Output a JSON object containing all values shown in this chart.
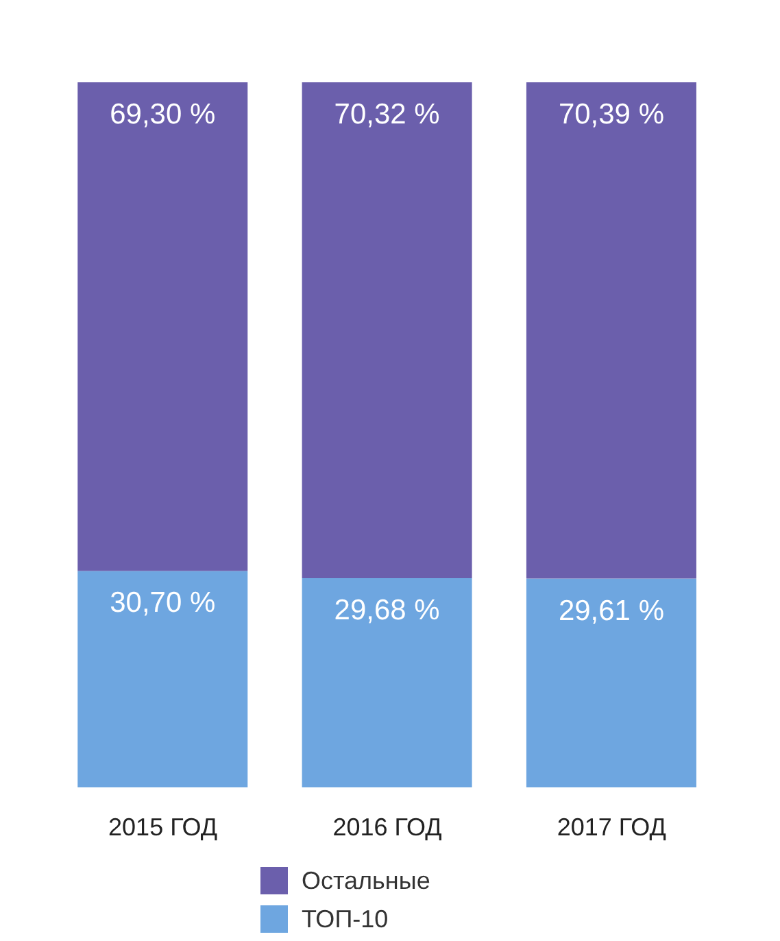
{
  "chart_data": {
    "type": "bar",
    "stacked": true,
    "categories": [
      "2015 ГОД",
      "2016 ГОД",
      "2017 ГОД"
    ],
    "legend": "bottom",
    "series": [
      {
        "name": "ТОП-10",
        "color": "#6ea6e0",
        "values": [
          30.7,
          29.68,
          29.61
        ],
        "value_labels": [
          "30,70 %",
          "29,68 %",
          "29,61 %"
        ]
      },
      {
        "name": "Остальные",
        "color": "#6b5fac",
        "values": [
          69.3,
          70.32,
          70.39
        ],
        "value_labels": [
          "69,30 %",
          "70,32 %",
          "70,39 %"
        ]
      }
    ]
  }
}
